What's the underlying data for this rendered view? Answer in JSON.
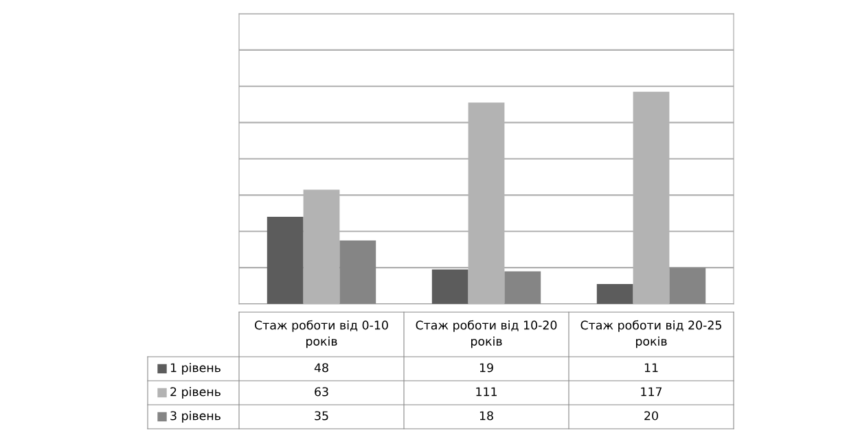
{
  "chart_data": {
    "type": "bar",
    "categories": [
      "Стаж роботи від 0-10 років",
      "Стаж роботи від 10-20 років",
      "Стаж роботи від 20-25 років"
    ],
    "series": [
      {
        "name": "1 рівень",
        "color": "#5c5c5c",
        "values": [
          48,
          19,
          11
        ]
      },
      {
        "name": "2 рівень",
        "color": "#b3b3b3",
        "values": [
          63,
          111,
          117
        ]
      },
      {
        "name": "3 рівень",
        "color": "#858585",
        "values": [
          35,
          18,
          20
        ]
      }
    ],
    "ylim": [
      0,
      160
    ],
    "yticks": [
      {
        "value": 0,
        "label": null
      },
      {
        "value": 20,
        "label": null
      },
      {
        "value": 40,
        "label": null
      },
      {
        "value": 60,
        "label": null
      },
      {
        "value": 80,
        "label": null
      },
      {
        "value": 100,
        "label": null
      },
      {
        "value": 120,
        "label": null
      },
      {
        "value": 140,
        "label": null
      },
      {
        "value": 160,
        "label": null
      }
    ],
    "tick_labels": "x",
    "grid": "y",
    "legend": "bottom",
    "data_labels": true
  }
}
